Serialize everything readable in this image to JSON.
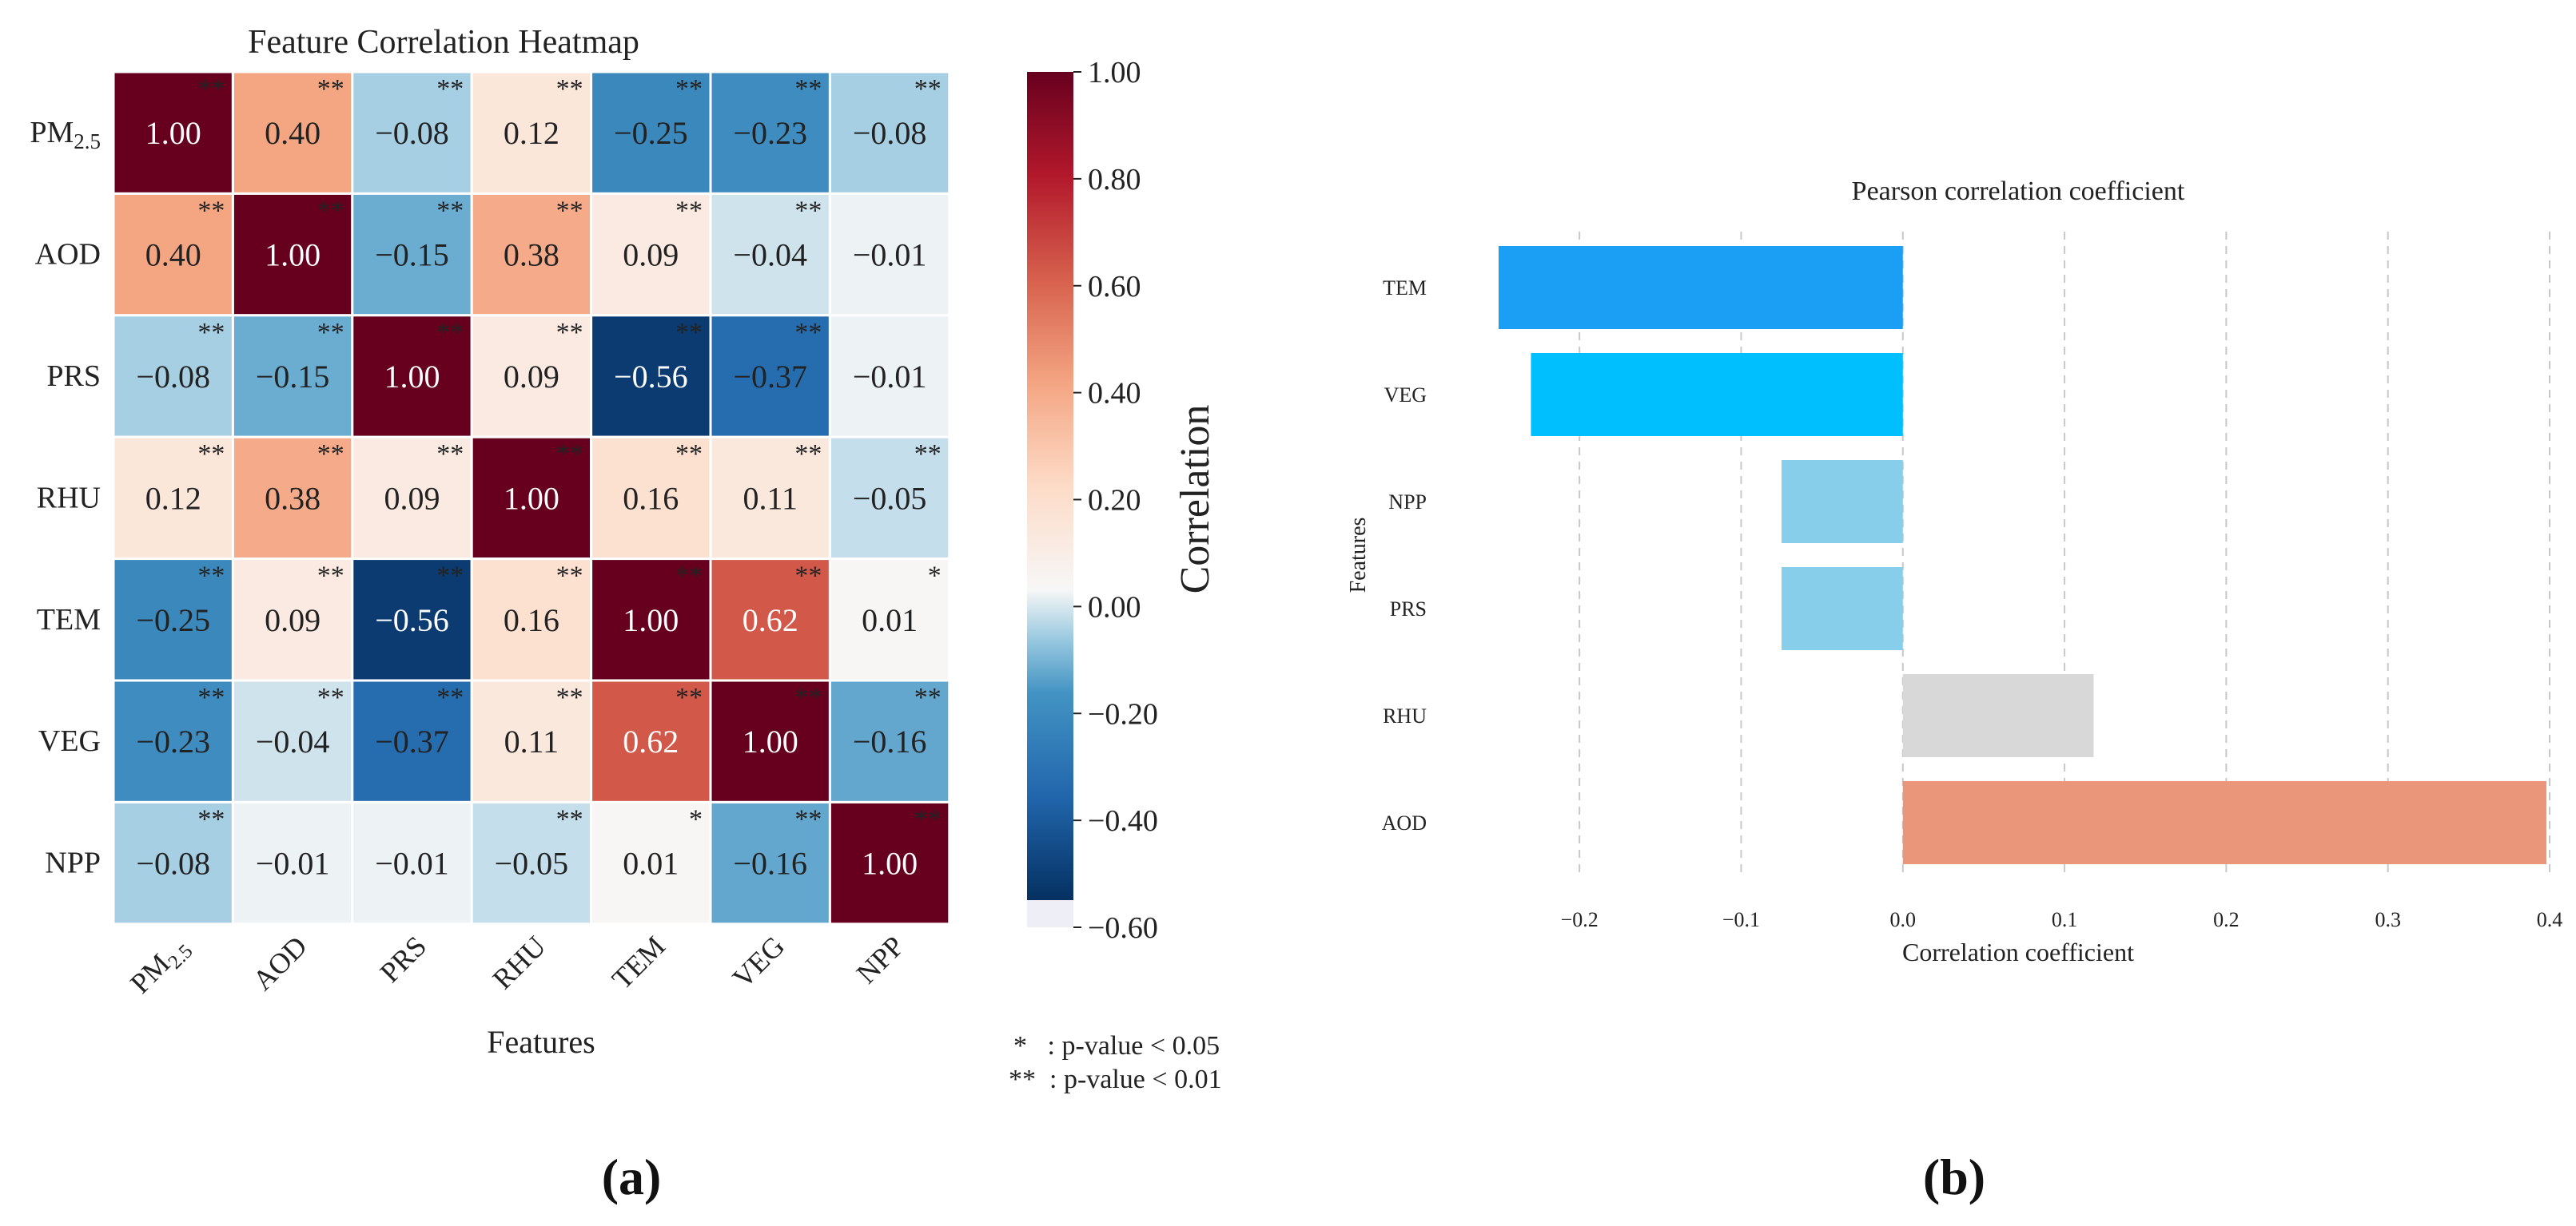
{
  "panels": {
    "a_label": "(a)",
    "b_label": "(b)"
  },
  "significance_notes": [
    "*   : p-value < 0.05",
    "**  : p-value < 0.01"
  ],
  "chart_data": [
    {
      "type": "heatmap",
      "title": "Feature Correlation Heatmap",
      "xlabel": "Features",
      "rows": [
        "PM2.5",
        "AOD",
        "PRS",
        "RHU",
        "TEM",
        "VEG",
        "NPP"
      ],
      "cols": [
        "PM2.5",
        "AOD",
        "PRS",
        "RHU",
        "TEM",
        "VEG",
        "NPP"
      ],
      "values": [
        [
          1.0,
          0.4,
          -0.08,
          0.12,
          -0.25,
          -0.23,
          -0.08
        ],
        [
          0.4,
          1.0,
          -0.15,
          0.38,
          0.09,
          -0.04,
          -0.01
        ],
        [
          -0.08,
          -0.15,
          1.0,
          0.09,
          -0.56,
          -0.37,
          -0.01
        ],
        [
          0.12,
          0.38,
          0.09,
          1.0,
          0.16,
          0.11,
          -0.05
        ],
        [
          -0.25,
          0.09,
          -0.56,
          0.16,
          1.0,
          0.62,
          0.01
        ],
        [
          -0.23,
          -0.04,
          -0.37,
          0.11,
          0.62,
          1.0,
          -0.16
        ],
        [
          -0.08,
          -0.01,
          -0.01,
          -0.05,
          0.01,
          -0.16,
          1.0
        ]
      ],
      "significance": [
        [
          "**",
          "**",
          "**",
          "**",
          "**",
          "**",
          "**"
        ],
        [
          "**",
          "**",
          "**",
          "**",
          "**",
          "**",
          ""
        ],
        [
          "**",
          "**",
          "**",
          "**",
          "**",
          "**",
          ""
        ],
        [
          "**",
          "**",
          "**",
          "**",
          "**",
          "**",
          "**"
        ],
        [
          "**",
          "**",
          "**",
          "**",
          "**",
          "**",
          "*"
        ],
        [
          "**",
          "**",
          "**",
          "**",
          "**",
          "**",
          "**"
        ],
        [
          "**",
          "",
          "",
          "**",
          "*",
          "**",
          "**"
        ]
      ],
      "colorbar": {
        "label": "Correlation",
        "range": [
          -0.6,
          1.0
        ],
        "ticks": [
          "1.00",
          "0.80",
          "0.60",
          "0.40",
          "0.20",
          "0.00",
          "−0.20",
          "−0.40",
          "−0.60"
        ]
      },
      "colors": {
        "neg": "#053061",
        "mid": "#f7f7f7",
        "pos": "#67001f",
        "grid": "#ffffff"
      }
    },
    {
      "type": "bar",
      "orientation": "horizontal",
      "title": "Pearson correlation coefficient",
      "xlabel": "Correlation coefficient",
      "ylabel": "Features",
      "categories": [
        "TEM",
        "VEG",
        "NPP",
        "PRS",
        "RHU",
        "AOD"
      ],
      "values": [
        -0.25,
        -0.23,
        -0.075,
        -0.075,
        0.118,
        0.398
      ],
      "bar_colors": [
        "#1a9ff5",
        "#00bfff",
        "#87ceeb",
        "#87ceeb",
        "#d8d8d8",
        "#e9967a"
      ],
      "xlim": [
        -0.25,
        0.4
      ],
      "xticks": [
        "−0.2",
        "−0.1",
        "0.0",
        "0.1",
        "0.2",
        "0.3",
        "0.4"
      ],
      "xtick_values": [
        -0.2,
        -0.1,
        0.0,
        0.1,
        0.2,
        0.3,
        0.4
      ],
      "grid": "vertical dashed"
    }
  ]
}
